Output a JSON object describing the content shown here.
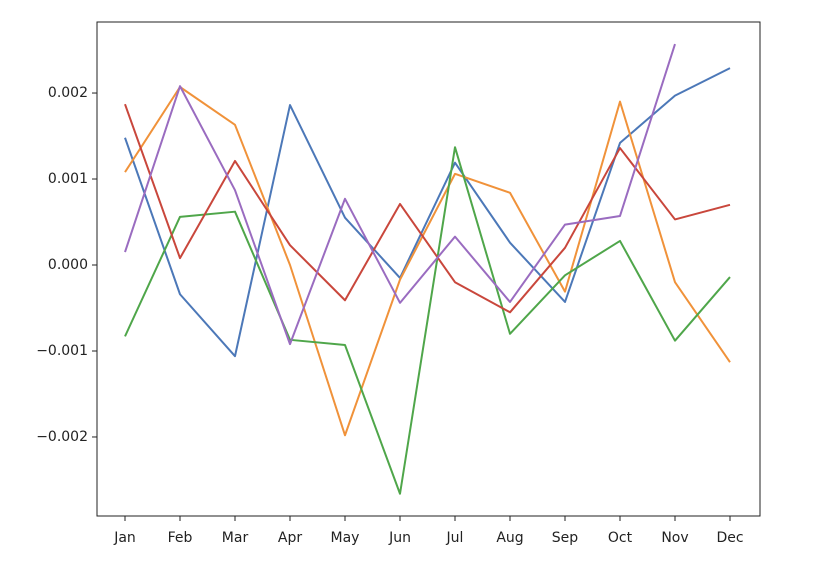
{
  "chart_data": {
    "type": "line",
    "categories": [
      "Jan",
      "Feb",
      "Mar",
      "Apr",
      "May",
      "Jun",
      "Jul",
      "Aug",
      "Sep",
      "Oct",
      "Nov",
      "Dec"
    ],
    "series": [
      {
        "color": "#4c78b8",
        "values": [
          0.00148,
          -0.00034,
          -0.00106,
          0.00186,
          0.00055,
          -0.00015,
          0.00119,
          0.00026,
          -0.00043,
          0.00142,
          0.00197,
          0.00229
        ]
      },
      {
        "color": "#f0923a",
        "values": [
          0.00108,
          0.00207,
          0.00163,
          0.0,
          -0.00198,
          -0.00017,
          0.00106,
          0.00084,
          -0.00031,
          0.0019,
          -0.0002,
          -0.00113
        ]
      },
      {
        "color": "#4fa64a",
        "values": [
          -0.00083,
          0.00056,
          0.00062,
          -0.00087,
          -0.00093,
          -0.00266,
          0.00137,
          -0.0008,
          -0.00012,
          0.00028,
          -0.00088,
          -0.00014
        ]
      },
      {
        "color": "#c9473c",
        "values": [
          0.00187,
          8e-05,
          0.00121,
          0.00023,
          -0.00041,
          0.00071,
          -0.0002,
          -0.00055,
          0.0002,
          0.00136,
          0.00053,
          0.0007
        ]
      },
      {
        "color": "#9a6cc0",
        "values": [
          0.00015,
          0.00208,
          0.00087,
          -0.00092,
          0.00077,
          -0.00044,
          0.00033,
          -0.00043,
          0.00047,
          0.00057,
          0.00257,
          null
        ]
      }
    ],
    "ylim": [
      -0.002919,
      0.002826
    ],
    "yticks": [
      {
        "value": -0.002,
        "label": "−0.002"
      },
      {
        "value": -0.001,
        "label": "−0.001"
      },
      {
        "value": 0,
        "label": "0.000"
      },
      0.001,
      0.002
    ],
    "grid": false
  }
}
